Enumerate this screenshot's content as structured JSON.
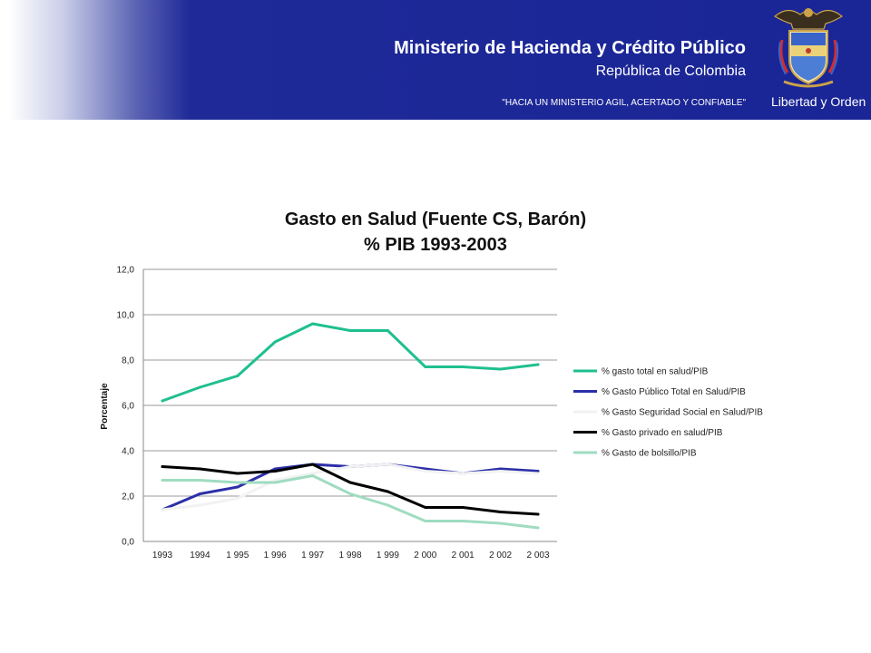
{
  "header": {
    "ministry": "Ministerio de Hacienda y Crédito Público",
    "country": "República de Colombia",
    "slogan": "\"HACIA UN MINISTERIO AGIL, ACERTADO Y CONFIABLE\"",
    "motto": "Libertad y Orden"
  },
  "colors": {
    "banner": "#1f2a98",
    "series_total": "#1fbf8f",
    "series_publico": "#2b2fa8",
    "series_seguridad": "#f2f2f2",
    "series_privado": "#000000",
    "series_bolsillo": "#9fdcc0"
  },
  "chart_data": {
    "type": "line",
    "title_line1": "Gasto en Salud (Fuente CS, Barón)",
    "title_line2": "% PIB 1993-2003",
    "xlabel": "",
    "ylabel": "Porcentaje",
    "ylim": [
      0,
      12
    ],
    "yticks": [
      "0,0",
      "2,0",
      "4,0",
      "6,0",
      "8,0",
      "10,0",
      "12,0"
    ],
    "grid": true,
    "legend_position": "right",
    "categories": [
      "1993",
      "1994",
      "1 995",
      "1 996",
      "1 997",
      "1 998",
      "1 999",
      "2 000",
      "2 001",
      "2 002",
      "2 003"
    ],
    "series": [
      {
        "name": "% gasto total en salud/PIB",
        "color": "#1fbf8f",
        "values": [
          6.2,
          6.8,
          7.3,
          8.8,
          9.6,
          9.3,
          9.3,
          7.7,
          7.7,
          7.6,
          7.8
        ]
      },
      {
        "name": "% Gasto Público Total en Salud/PIB",
        "color": "#2b2fa8",
        "values": [
          1.4,
          2.1,
          2.4,
          3.2,
          3.4,
          3.3,
          3.4,
          3.2,
          3.0,
          3.2,
          3.1
        ]
      },
      {
        "name": "% Gasto Seguridad Social en Salud/PIB",
        "color": "#f2f2f2",
        "values": [
          1.4,
          1.6,
          1.9,
          2.7,
          3.0,
          3.3,
          3.4,
          3.1,
          3.0,
          3.1,
          3.0
        ]
      },
      {
        "name": "% Gasto privado en salud/PIB",
        "color": "#000000",
        "values": [
          3.3,
          3.2,
          3.0,
          3.1,
          3.4,
          2.6,
          2.2,
          1.5,
          1.5,
          1.3,
          1.2
        ]
      },
      {
        "name": "% Gasto de bolsillo/PIB",
        "color": "#9fdcc0",
        "values": [
          2.7,
          2.7,
          2.6,
          2.6,
          2.9,
          2.1,
          1.6,
          0.9,
          0.9,
          0.8,
          0.6
        ]
      }
    ]
  }
}
